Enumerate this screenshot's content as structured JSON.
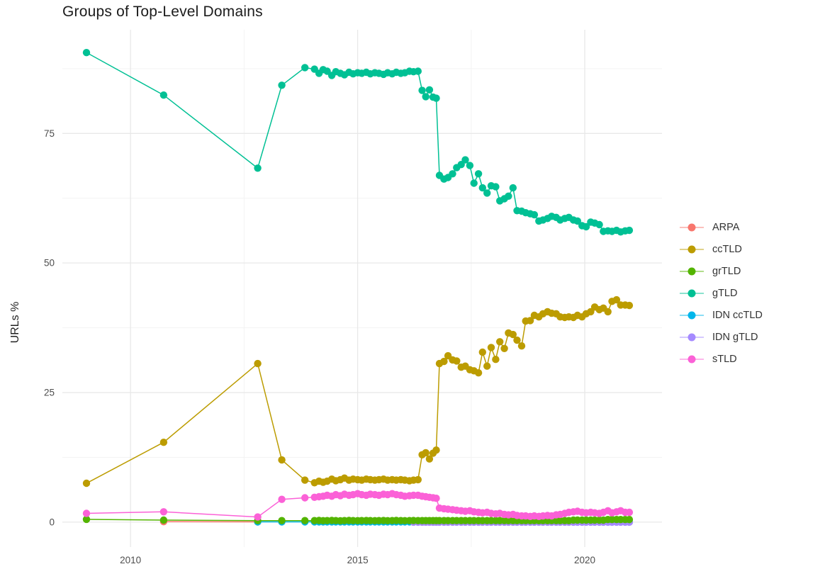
{
  "chart_data": {
    "type": "line",
    "title": "Groups of Top-Level Domains",
    "xlabel": "",
    "ylabel": "URLs %",
    "x_range": [
      2008.5,
      2021.7
    ],
    "y_range": [
      -4.8,
      95.0
    ],
    "x_ticks": [
      2010,
      2015,
      2020
    ],
    "x_tick_labels": [
      "2010",
      "2015",
      "2020"
    ],
    "x_minor": [
      2012.5,
      2017.5
    ],
    "y_ticks": [
      0,
      25,
      50,
      75
    ],
    "y_tick_labels": [
      "0",
      "25",
      "50",
      "75"
    ],
    "y_minor": [
      12.5,
      37.5,
      62.5,
      87.5
    ],
    "grid": true,
    "legend_position": "right",
    "theme": {
      "background": "#FFFFFF",
      "grid_major": "#E8E8E8",
      "grid_minor": "#F3F3F3",
      "tick_text": "#4D4D4D",
      "title_text": "#1C1C1C"
    },
    "legend_order": [
      "ARPA",
      "ccTLD",
      "grTLD",
      "gTLD",
      "IDN ccTLD",
      "IDN gTLD",
      "sTLD"
    ],
    "draw_order": [
      "ARPA",
      "IDN ccTLD",
      "IDN gTLD",
      "grTLD",
      "ccTLD",
      "gTLD",
      "sTLD"
    ],
    "x_group_defs": {
      "sparse": [
        2009.03,
        2010.73,
        2012.8,
        2013.33,
        2013.84
      ],
      "S2": [
        2012.8,
        2013.33,
        2013.84
      ],
      "B2": [
        2016.23,
        2016.33
      ],
      "A": [
        2014.05,
        2014.15,
        2014.24,
        2014.33,
        2014.43,
        2014.52,
        2014.62,
        2014.71,
        2014.81,
        2014.9,
        2015.0,
        2015.09,
        2015.19,
        2015.28,
        2015.38,
        2015.47,
        2015.57,
        2015.66,
        2015.76,
        2015.85,
        2015.95,
        2016.04,
        2016.14,
        2016.23,
        2016.33
      ],
      "B": [
        2016.42,
        2016.5,
        2016.58,
        2016.66,
        2016.73
      ],
      "C": [
        2016.8,
        2016.9,
        2016.99,
        2017.09,
        2017.18,
        2017.28,
        2017.37,
        2017.47,
        2017.56,
        2017.66,
        2017.75,
        2017.85,
        2017.94,
        2018.04,
        2018.13,
        2018.23,
        2018.32,
        2018.42,
        2018.51,
        2018.61,
        2018.7,
        2018.8,
        2018.89,
        2018.99,
        2019.08,
        2019.18,
        2019.27,
        2019.37,
        2019.46,
        2019.56,
        2019.65,
        2019.75,
        2019.84,
        2019.94,
        2020.03,
        2020.13,
        2020.22,
        2020.32,
        2020.41,
        2020.51,
        2020.6,
        2020.7,
        2020.79,
        2020.89,
        2020.98
      ]
    },
    "series": [
      {
        "name": "ARPA",
        "color": "#F8766D",
        "points": [
          [
            2010.73,
            0.1
          ],
          [
            2012.8,
            0.05
          ]
        ]
      },
      {
        "name": "IDN ccTLD",
        "color": "#00B6EB",
        "x_groups": [
          "S2",
          "A",
          "B",
          "C"
        ],
        "constant": 0.05
      },
      {
        "name": "IDN gTLD",
        "color": "#A58AFF",
        "x_groups": [
          "B2",
          "B",
          "C"
        ],
        "constant": 0.0
      },
      {
        "name": "grTLD",
        "color": "#53B400",
        "x_groups": [
          "sparse",
          "A",
          "B",
          "C"
        ],
        "values": [
          0.55,
          0.4,
          0.3,
          0.3,
          0.3,
          0.3,
          0.32,
          0.28,
          0.3,
          0.33,
          0.3,
          0.27,
          0.3,
          0.32,
          0.3,
          0.28,
          0.3,
          0.31,
          0.3,
          0.29,
          0.3,
          0.31,
          0.28,
          0.3,
          0.32,
          0.3,
          0.29,
          0.3,
          0.31,
          0.3,
          0.3,
          0.3,
          0.3,
          0.3,
          0.3,
          0.3,
          0.3,
          0.3,
          0.3,
          0.3,
          0.3,
          0.3,
          0.3,
          0.3,
          0.3,
          0.3,
          0.3,
          0.3,
          0.3,
          0.3,
          0.3,
          0.3,
          0.3,
          0.3,
          0.3,
          0.3,
          0.3,
          0.3,
          0.3,
          0.3,
          0.3,
          0.3,
          0.3,
          0.3,
          0.3,
          0.3,
          0.4,
          0.4,
          0.4,
          0.4,
          0.4,
          0.4,
          0.4,
          0.4,
          0.5,
          0.5,
          0.5,
          0.5,
          0.5,
          0.5
        ]
      },
      {
        "name": "ccTLD",
        "color": "#BC9C00",
        "x_groups": [
          "sparse",
          "A",
          "B",
          "C"
        ],
        "values": [
          7.5,
          15.4,
          30.6,
          12.0,
          8.1,
          7.6,
          7.9,
          7.7,
          7.9,
          8.3,
          8.0,
          8.2,
          8.5,
          8.1,
          8.3,
          8.2,
          8.1,
          8.3,
          8.2,
          8.1,
          8.2,
          8.3,
          8.1,
          8.2,
          8.1,
          8.2,
          8.1,
          8.0,
          8.1,
          8.2,
          13.0,
          13.4,
          12.2,
          13.3,
          13.9,
          30.6,
          31.0,
          32.1,
          31.3,
          31.1,
          29.9,
          30.1,
          29.4,
          29.2,
          28.8,
          32.8,
          30.1,
          33.7,
          31.4,
          34.8,
          33.5,
          36.5,
          36.2,
          35.1,
          34.0,
          38.8,
          38.9,
          39.9,
          39.6,
          40.2,
          40.6,
          40.3,
          40.2,
          39.6,
          39.5,
          39.6,
          39.5,
          39.9,
          39.6,
          40.2,
          40.6,
          41.5,
          41.0,
          41.3,
          40.6,
          42.6,
          42.9,
          41.9,
          41.9,
          41.8
        ]
      },
      {
        "name": "gTLD",
        "color": "#00C094",
        "x_groups": [
          "sparse",
          "A",
          "B",
          "C"
        ],
        "values": [
          90.6,
          82.4,
          68.3,
          84.3,
          87.7,
          87.4,
          86.6,
          87.3,
          87.0,
          86.2,
          86.9,
          86.6,
          86.3,
          86.8,
          86.5,
          86.7,
          86.6,
          86.8,
          86.5,
          86.7,
          86.6,
          86.4,
          86.7,
          86.5,
          86.8,
          86.6,
          86.7,
          87.0,
          86.9,
          87.0,
          83.3,
          82.1,
          83.4,
          82.0,
          81.8,
          66.9,
          66.2,
          66.5,
          67.2,
          68.4,
          69.0,
          69.9,
          68.8,
          65.4,
          67.2,
          64.5,
          63.5,
          64.9,
          64.7,
          62.0,
          62.4,
          62.9,
          64.5,
          60.1,
          60.0,
          59.7,
          59.5,
          59.3,
          58.1,
          58.3,
          58.6,
          59.0,
          58.8,
          58.3,
          58.6,
          58.8,
          58.3,
          58.1,
          57.2,
          57.0,
          57.9,
          57.7,
          57.4,
          56.1,
          56.2,
          56.1,
          56.3,
          56.0,
          56.2,
          56.3
        ]
      },
      {
        "name": "sTLD",
        "color": "#FB61D7",
        "x_groups": [
          "sparse",
          "A",
          "B",
          "C"
        ],
        "values": [
          1.7,
          2.0,
          1.0,
          4.4,
          4.7,
          4.8,
          4.9,
          5.0,
          5.2,
          5.0,
          5.3,
          5.1,
          5.4,
          5.2,
          5.3,
          5.5,
          5.3,
          5.2,
          5.4,
          5.3,
          5.2,
          5.4,
          5.3,
          5.5,
          5.3,
          5.2,
          5.0,
          5.1,
          5.2,
          5.2,
          5.0,
          4.9,
          4.8,
          4.7,
          4.6,
          2.7,
          2.6,
          2.5,
          2.4,
          2.3,
          2.2,
          2.1,
          2.2,
          2.0,
          1.9,
          1.8,
          1.9,
          1.7,
          1.6,
          1.7,
          1.5,
          1.4,
          1.5,
          1.3,
          1.2,
          1.2,
          1.1,
          1.2,
          1.1,
          1.2,
          1.3,
          1.2,
          1.4,
          1.5,
          1.7,
          1.9,
          2.0,
          2.1,
          1.9,
          1.8,
          1.9,
          1.8,
          1.7,
          1.9,
          2.2,
          1.8,
          2.0,
          2.2,
          1.9,
          1.9
        ]
      }
    ]
  }
}
